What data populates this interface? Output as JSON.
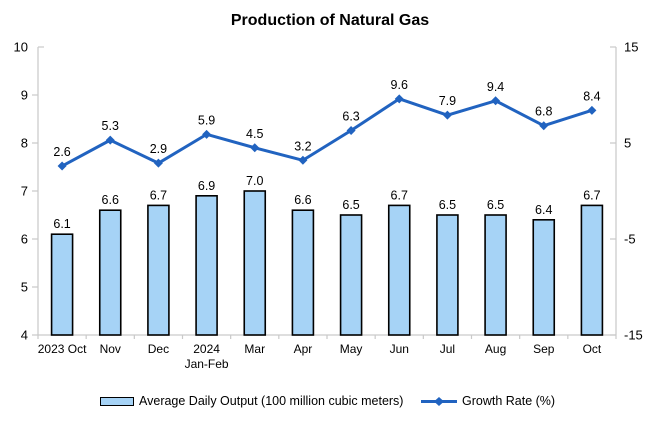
{
  "title": "Production of Natural Gas",
  "chart_data": {
    "type": "combo-bar-line",
    "categories": [
      "2023 Oct",
      "Nov",
      "Dec",
      "2024\nJan-Feb",
      "Mar",
      "Apr",
      "May",
      "Jun",
      "Jul",
      "Aug",
      "Sep",
      "Oct"
    ],
    "series": [
      {
        "name": "Average Daily Output (100 million cubic meters)",
        "type": "bar",
        "axis": "left",
        "values": [
          6.1,
          6.6,
          6.7,
          6.9,
          7.0,
          6.6,
          6.5,
          6.7,
          6.5,
          6.5,
          6.4,
          6.7
        ],
        "fill": "#A6D3F6",
        "stroke": "#000000"
      },
      {
        "name": "Growth Rate (%)",
        "type": "line",
        "axis": "right",
        "values": [
          2.6,
          5.3,
          2.9,
          5.9,
          4.5,
          3.2,
          6.3,
          9.6,
          7.9,
          9.4,
          6.8,
          8.4
        ],
        "color": "#2163C0",
        "marker": "diamond"
      }
    ],
    "left_axis": {
      "min": 4,
      "max": 10,
      "ticks": [
        4,
        5,
        6,
        7,
        8,
        9,
        10
      ]
    },
    "right_axis": {
      "min": -15,
      "max": 15,
      "ticks": [
        -15,
        -5,
        5,
        15
      ]
    },
    "legend_position": "bottom",
    "grid": false,
    "axis_color": "#C9C9C9",
    "data_labels": true
  }
}
